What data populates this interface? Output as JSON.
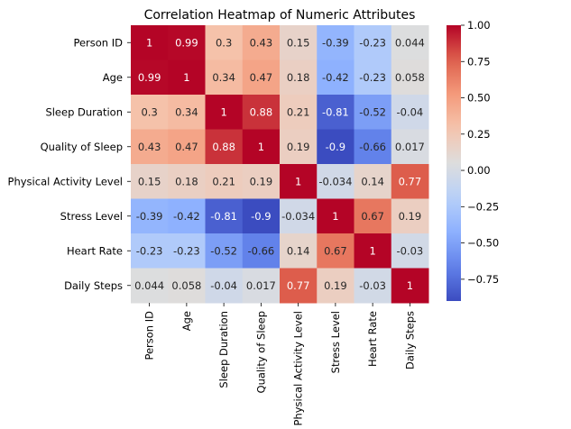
{
  "chart_data": {
    "type": "heatmap",
    "title": "Correlation Heatmap of Numeric Attributes",
    "xlabel": "",
    "ylabel": "",
    "categories": [
      "Person ID",
      "Age",
      "Sleep Duration",
      "Quality of Sleep",
      "Physical Activity Level",
      "Stress Level",
      "Heart Rate",
      "Daily Steps"
    ],
    "values": [
      [
        1,
        0.99,
        0.3,
        0.43,
        0.15,
        -0.39,
        -0.23,
        0.044
      ],
      [
        0.99,
        1,
        0.34,
        0.47,
        0.18,
        -0.42,
        -0.23,
        0.058
      ],
      [
        0.3,
        0.34,
        1,
        0.88,
        0.21,
        -0.81,
        -0.52,
        -0.04
      ],
      [
        0.43,
        0.47,
        0.88,
        1,
        0.19,
        -0.9,
        -0.66,
        0.017
      ],
      [
        0.15,
        0.18,
        0.21,
        0.19,
        1,
        -0.034,
        0.14,
        0.77
      ],
      [
        -0.39,
        -0.42,
        -0.81,
        -0.9,
        -0.034,
        1,
        0.67,
        0.19
      ],
      [
        -0.23,
        -0.23,
        -0.52,
        -0.66,
        0.14,
        0.67,
        1,
        -0.03
      ],
      [
        0.044,
        0.058,
        -0.04,
        0.017,
        0.77,
        0.19,
        -0.03,
        1
      ]
    ],
    "vmin": -0.9,
    "vmax": 1.0,
    "colormap": "coolwarm",
    "colorbar_ticks": [
      1.0,
      0.75,
      0.5,
      0.25,
      0.0,
      -0.25,
      -0.5,
      -0.75
    ],
    "colorbar_tick_labels": [
      "1.00",
      "0.75",
      "0.50",
      "0.25",
      "0.00",
      "−0.25",
      "−0.50",
      "−0.75"
    ],
    "annotations": true,
    "grid": false,
    "legend": "colorbar-right"
  }
}
